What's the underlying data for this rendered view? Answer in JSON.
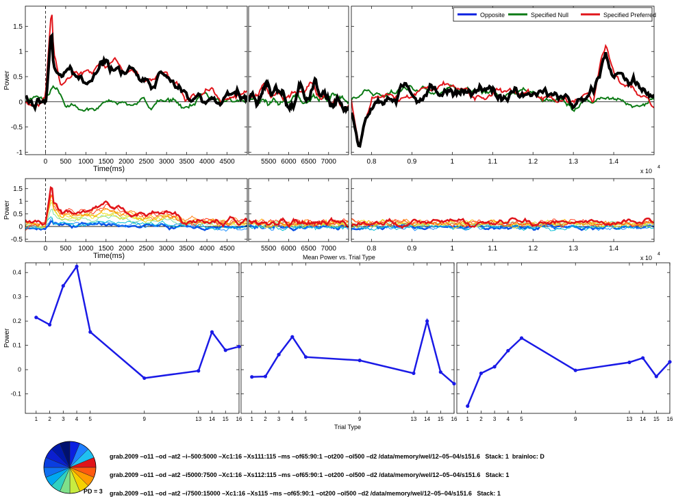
{
  "figure_title": "Mean Power vs. Trial Type",
  "x_exponent": "x 10",
  "x_exponent_power": "4",
  "pd_label": "PD = 3",
  "command_lines": [
    "grab.2009 –o11 –od –at2 –i–500:5000 –Xc1:16 –Xs111:115 –ms –of65:90:1 –ot200 –ol500 –d2 /data/memory/wel/12–05–04/s151.6   Stack: 1  brainloc: D",
    "grab.2009 –o11 –od –at2 –i5000:7500 –Xc1:16 –Xs112:115 –ms –of65:90:1 –ot200 –ol500 –d2 /data/memory/wel/12–05–04/s151.6   Stack: 1",
    "grab.2009 –o11 –od –at2 –i7500:15000 –Xc1:16 –Xs115 –ms –of65:90:1 –ot200 –ol500 –d2 /data/memory/wel/12–05–04/s151.6   Stack: 1"
  ],
  "colors": {
    "opposite": "#0a1fe0",
    "null": "#0b7a14",
    "preferred": "#e0141a",
    "mean": "#000000",
    "trial_line": "#1a1ae6"
  },
  "chart_data": [
    {
      "type": "line",
      "ylabel": "Power",
      "xlabel": "Time(ms)",
      "ylim": [
        -1.05,
        1.9
      ],
      "yticks": [
        -1,
        -0.5,
        0,
        0.5,
        1,
        1.5
      ],
      "panels": [
        {
          "xlim": [
            -500,
            5000
          ],
          "xticks": [
            0,
            500,
            1000,
            1500,
            2000,
            2500,
            3000,
            3500,
            4000,
            4500
          ],
          "xlabel": "Time(ms)"
        },
        {
          "xlim": [
            5000,
            7500
          ],
          "xticks": [
            5500,
            6000,
            6500,
            7000
          ],
          "xlabel": ""
        },
        {
          "xlim": [
            7500,
            15000
          ],
          "xticks": [
            8000,
            9000,
            10000,
            11000,
            12000,
            13000,
            14000
          ],
          "xticklabels": [
            "0.8",
            "0.9",
            "1",
            "1.1",
            "1.2",
            "1.3",
            "1.4"
          ],
          "xlabel": ""
        }
      ],
      "legend": [
        "Opposite",
        "Specified Null",
        "Specified Preferred"
      ],
      "legend_position": "top-right",
      "series": [
        {
          "name": "Opposite",
          "values": []
        },
        {
          "name": "Specified Null",
          "x": [
            -500,
            0,
            200,
            500,
            1000,
            1500,
            2000,
            2500,
            3000,
            3500,
            4000,
            4500,
            5000,
            5500,
            6000,
            6500,
            7000,
            7500,
            8000,
            8500,
            9000,
            9500,
            10000,
            10500,
            11000,
            11500,
            12000,
            12500,
            13000,
            13500,
            14000,
            14500,
            15000
          ],
          "values": [
            0.05,
            0.05,
            0.25,
            -0.05,
            -0.15,
            -0.05,
            0,
            -0.05,
            0.05,
            -0.1,
            0.1,
            -0.05,
            0.05,
            -0.05,
            0.05,
            0.05,
            0.1,
            0.05,
            0.2,
            0.15,
            0.3,
            0.1,
            0.3,
            0.25,
            0.15,
            0.1,
            0.2,
            0.05,
            -0.15,
            0.05,
            0.1,
            -0.1,
            0.05
          ]
        },
        {
          "name": "Specified Preferred",
          "x": [
            -500,
            0,
            150,
            200,
            400,
            500,
            1000,
            1500,
            2000,
            2500,
            3000,
            3500,
            4000,
            4500,
            5000,
            5500,
            6000,
            6500,
            7000,
            7500,
            7700,
            8000,
            8500,
            9000,
            9500,
            10000,
            10500,
            11000,
            11500,
            12000,
            12500,
            13000,
            13500,
            13800,
            14000,
            14500,
            15000
          ],
          "values": [
            -0.05,
            0,
            1.8,
            1.0,
            0.45,
            0.5,
            0.6,
            0.85,
            0.55,
            0.35,
            0.55,
            0.1,
            0.2,
            0.05,
            0.1,
            0.3,
            0.0,
            0.3,
            0.1,
            -0.1,
            -0.9,
            0.0,
            0.1,
            0.15,
            0.25,
            0.3,
            0.1,
            0.2,
            0.2,
            0.15,
            0.1,
            -0.05,
            0.1,
            1.1,
            0.5,
            0.3,
            0.0
          ]
        }
      ]
    },
    {
      "type": "line",
      "ylabel": "Power",
      "xlabel": "Time(ms)",
      "ylim": [
        -0.6,
        1.9
      ],
      "yticks": [
        -0.5,
        0,
        0.5,
        1,
        1.5
      ],
      "panels": [
        {
          "xlim": [
            -500,
            5000
          ],
          "xticks": [
            0,
            500,
            1000,
            1500,
            2000,
            2500,
            3000,
            3500,
            4000,
            4500
          ],
          "xlabel": "Time(ms)"
        },
        {
          "xlim": [
            5000,
            7500
          ],
          "xticks": [
            5500,
            6000,
            6500,
            7000
          ],
          "xlabel": ""
        },
        {
          "xlim": [
            7500,
            15000
          ],
          "xticks": [
            8000,
            9000,
            10000,
            11000,
            12000,
            13000,
            14000
          ],
          "xticklabels": [
            "0.8",
            "0.9",
            "1",
            "1.1",
            "1.2",
            "1.3",
            "1.4"
          ],
          "xlabel": ""
        }
      ],
      "series": []
    },
    {
      "type": "line",
      "title": "Mean Power vs. Trial Type",
      "ylabel": "Power",
      "xlabel": "Trial Type",
      "xticks": [
        1,
        2,
        3,
        4,
        5,
        9,
        13,
        14,
        15,
        16
      ],
      "ylim": [
        -0.18,
        0.44
      ],
      "yticks": [
        -0.1,
        0,
        0.1,
        0.2,
        0.3,
        0.4
      ],
      "series": [
        {
          "x": [
            1,
            2,
            3,
            4,
            5,
            9,
            13,
            14,
            15,
            16
          ],
          "values": [
            0.215,
            0.185,
            0.345,
            0.425,
            0.155,
            -0.035,
            -0.005,
            0.155,
            0.08,
            0.095
          ]
        },
        {
          "x": [
            1,
            2,
            3,
            4,
            5,
            9,
            13,
            14,
            15,
            16
          ],
          "values": [
            -0.03,
            -0.028,
            0.062,
            0.135,
            0.052,
            0.038,
            -0.015,
            0.2,
            -0.01,
            -0.058
          ]
        },
        {
          "x": [
            1,
            2,
            3,
            4,
            5,
            9,
            13,
            14,
            15,
            16
          ],
          "values": [
            -0.15,
            -0.015,
            0.012,
            0.078,
            0.13,
            -0.003,
            0.03,
            0.048,
            -0.028,
            0.032
          ]
        }
      ]
    }
  ]
}
